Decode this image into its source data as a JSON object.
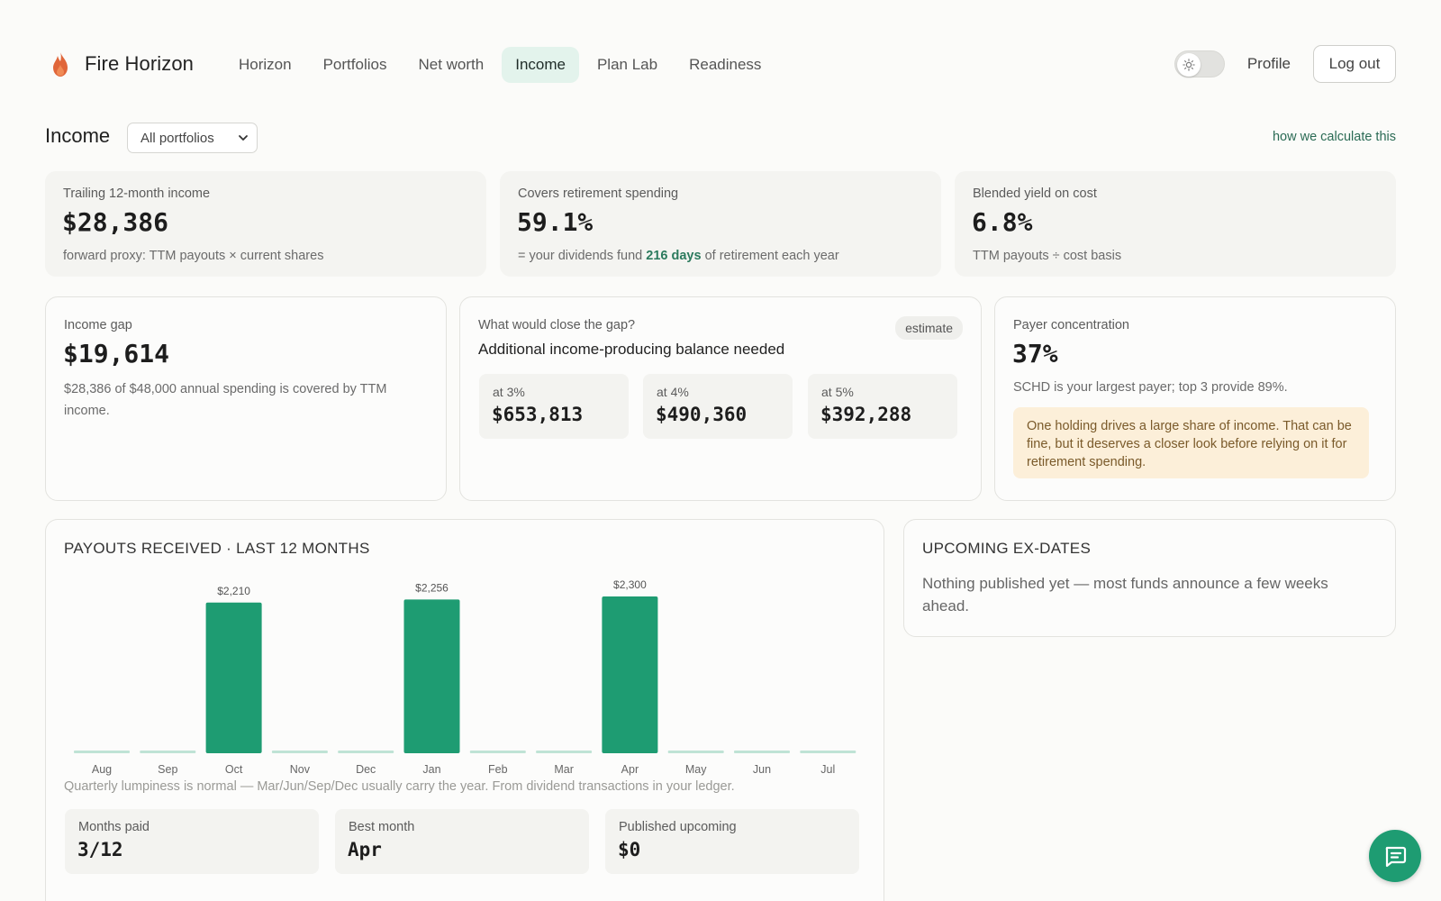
{
  "brand": {
    "name": "Fire Horizon",
    "icon": "flame-icon",
    "accent": "#e0663a"
  },
  "nav": {
    "items": [
      {
        "label": "Horizon",
        "active": false
      },
      {
        "label": "Portfolios",
        "active": false
      },
      {
        "label": "Net worth",
        "active": false
      },
      {
        "label": "Income",
        "active": true
      },
      {
        "label": "Plan Lab",
        "active": false
      },
      {
        "label": "Readiness",
        "active": false
      }
    ]
  },
  "header": {
    "theme_toggle_icon": "sun-icon",
    "profile_label": "Profile",
    "logout_label": "Log out"
  },
  "page": {
    "title": "Income",
    "portfolio_select": "All portfolios",
    "how_link": "how we calculate this"
  },
  "stats": [
    {
      "label": "Trailing 12-month income",
      "value": "$28,386",
      "sub": "forward proxy: TTM payouts × current shares"
    },
    {
      "label": "Covers retirement spending",
      "value": "59.1%",
      "sub_prefix": "= your dividends fund ",
      "sub_highlight": "216 days",
      "sub_suffix": " of retirement each year"
    },
    {
      "label": "Blended yield on cost",
      "value": "6.8%",
      "sub": "TTM payouts ÷ cost basis"
    }
  ],
  "income_gap": {
    "label": "Income gap",
    "value": "$19,614",
    "sub": "$28,386 of $48,000 annual spending is covered by TTM income."
  },
  "close_gap": {
    "label": "What would close the gap?",
    "title": "Additional income-producing balance needed",
    "badge": "estimate",
    "rates": [
      {
        "label": "at 3%",
        "value": "$653,813"
      },
      {
        "label": "at 4%",
        "value": "$490,360"
      },
      {
        "label": "at 5%",
        "value": "$392,288"
      }
    ]
  },
  "payer": {
    "label": "Payer concentration",
    "value": "37%",
    "sub": "SCHD is your largest payer; top 3 provide 89%.",
    "warning": "One holding drives a large share of income. That can be fine, but it deserves a closer look before relying on it for retirement spending."
  },
  "payouts": {
    "title": "PAYOUTS RECEIVED · LAST 12 MONTHS",
    "note": "Quarterly lumpiness is normal — Mar/Jun/Sep/Dec usually carry the year. From dividend transactions in your ledger.",
    "stats": [
      {
        "label": "Months paid",
        "value": "3/12"
      },
      {
        "label": "Best month",
        "value": "Apr"
      },
      {
        "label": "Published upcoming",
        "value": "$0"
      }
    ]
  },
  "chart_data": {
    "type": "bar",
    "categories": [
      "Aug",
      "Sep",
      "Oct",
      "Nov",
      "Dec",
      "Jan",
      "Feb",
      "Mar",
      "Apr",
      "May",
      "Jun",
      "Jul"
    ],
    "values": [
      0,
      0,
      2210,
      0,
      0,
      2256,
      0,
      0,
      2300,
      0,
      0,
      0
    ],
    "data_labels": [
      "",
      "",
      "$2,210",
      "",
      "",
      "$2,256",
      "",
      "",
      "$2,300",
      "",
      "",
      ""
    ],
    "ylim": [
      0,
      2300
    ],
    "grid": false,
    "color": "#1e9c72",
    "zero_color": "#bfe3d5"
  },
  "ex_dates": {
    "title": "UPCOMING EX-DATES",
    "text": "Nothing published yet — most funds announce a few weeks ahead."
  },
  "chat": {
    "icon": "chat-icon"
  }
}
